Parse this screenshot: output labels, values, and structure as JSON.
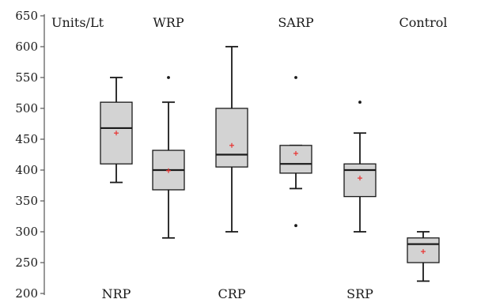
{
  "chart_data": {
    "type": "box",
    "ylabel": "Units/Lt",
    "ylim": [
      200,
      650
    ],
    "yticks": [
      200,
      250,
      300,
      350,
      400,
      450,
      500,
      550,
      600,
      650
    ],
    "grid": false,
    "categories": [
      "NRP",
      "WRP",
      "CRP",
      "SARP",
      "SRP",
      "Control"
    ],
    "label_rows": [
      "bottom",
      "top",
      "bottom",
      "top",
      "bottom",
      "top"
    ],
    "series": [
      {
        "category": "NRP",
        "whisker_low": 380,
        "q1": 410,
        "median": 468,
        "q3": 510,
        "whisker_high": 550,
        "mean": 460,
        "outliers": []
      },
      {
        "category": "WRP",
        "whisker_low": 290,
        "q1": 368,
        "median": 400,
        "q3": 432,
        "whisker_high": 510,
        "mean": 399,
        "outliers": [
          550
        ]
      },
      {
        "category": "CRP",
        "whisker_low": 300,
        "q1": 405,
        "median": 425,
        "q3": 500,
        "whisker_high": 600,
        "mean": 440,
        "outliers": []
      },
      {
        "category": "SARP",
        "whisker_low": 370,
        "q1": 395,
        "median": 410,
        "q3": 440,
        "whisker_high": 440,
        "mean": 427,
        "outliers": [
          550,
          310
        ]
      },
      {
        "category": "SRP",
        "whisker_low": 300,
        "q1": 357,
        "median": 400,
        "q3": 410,
        "whisker_high": 460,
        "mean": 387,
        "outliers": [
          510
        ]
      },
      {
        "category": "Control",
        "whisker_low": 220,
        "q1": 250,
        "median": 280,
        "q3": 290,
        "whisker_high": 300,
        "mean": 268,
        "outliers": []
      }
    ]
  },
  "colors": {
    "box_fill": "#d3d3d3",
    "box_stroke": "#1a1a1a",
    "mean_marker": "#e8312f",
    "axis": "#555555"
  }
}
